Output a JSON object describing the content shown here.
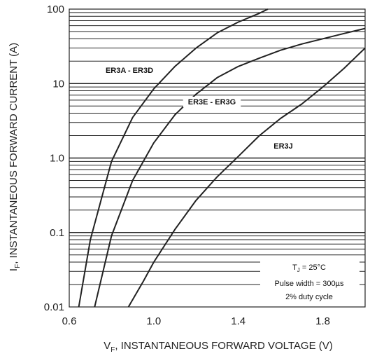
{
  "chart_data": {
    "type": "line",
    "title": "",
    "xlabel_parts": [
      "V",
      "F",
      ", INSTANTANEOUS FORWARD VOLTAGE (V)"
    ],
    "ylabel_parts": [
      "I",
      "F",
      ", INSTANTANEOUS FORWARD CURRENT (A)"
    ],
    "x_scale": "linear",
    "y_scale": "log",
    "xlim": [
      0.6,
      2.0
    ],
    "ylim": [
      0.01,
      100
    ],
    "x_ticks": [
      0.6,
      1.0,
      1.4,
      1.8
    ],
    "x_tick_labels": [
      "0.6",
      "1.0",
      "1.4",
      "1.8"
    ],
    "y_ticks": [
      0.01,
      0.1,
      1.0,
      10,
      100
    ],
    "y_tick_labels": [
      "0.01",
      "0.1",
      "1.0",
      "10",
      "100"
    ],
    "grid": "log-minor horizontal, no vertical",
    "series": [
      {
        "name": "ER3A - ER3D",
        "x": [
          0.645,
          0.7,
          0.8,
          0.9,
          1.0,
          1.1,
          1.2,
          1.3,
          1.4,
          1.5,
          1.54
        ],
        "y": [
          0.01,
          0.08,
          0.9,
          3.5,
          8.5,
          17,
          30,
          48,
          67,
          88,
          100
        ]
      },
      {
        "name": "ER3E - ER3G",
        "x": [
          0.72,
          0.8,
          0.9,
          1.0,
          1.1,
          1.2,
          1.3,
          1.4,
          1.5,
          1.6,
          1.7,
          1.8,
          1.9,
          2.0
        ],
        "y": [
          0.01,
          0.09,
          0.5,
          1.6,
          3.8,
          7.2,
          12,
          17,
          22,
          28,
          34,
          40,
          47,
          55
        ]
      },
      {
        "name": "ER3J",
        "x": [
          0.88,
          0.95,
          1.0,
          1.1,
          1.2,
          1.3,
          1.4,
          1.5,
          1.6,
          1.7,
          1.8,
          1.9,
          2.0
        ],
        "y": [
          0.01,
          0.022,
          0.04,
          0.11,
          0.27,
          0.56,
          1.05,
          2.0,
          3.4,
          5.3,
          9.0,
          16,
          30
        ]
      }
    ],
    "annotations": {
      "tj": [
        "T",
        "J",
        " = 25°C"
      ],
      "pulse": "Pulse width = 300µs",
      "duty": "2% duty cycle"
    },
    "colors": {
      "line": "#222222",
      "grid": "#222222",
      "background": "#ffffff"
    }
  }
}
